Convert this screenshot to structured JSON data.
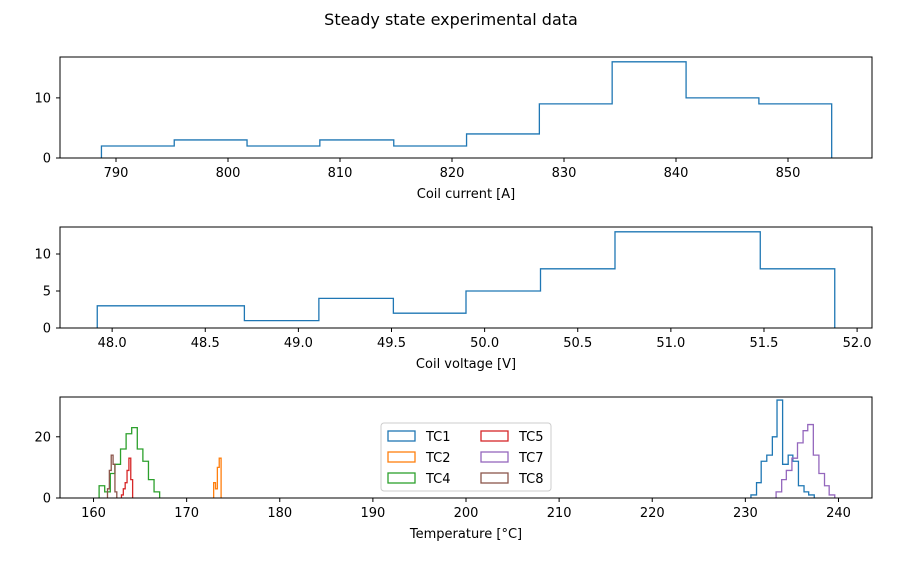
{
  "figure_title": "Steady state experimental data",
  "chart_data": [
    {
      "type": "histogram",
      "title": "",
      "xlabel": "Coil current [A]",
      "ylabel": "",
      "xlim": [
        785,
        857.5
      ],
      "ylim": [
        0,
        16.8
      ],
      "xticks": [
        790,
        800,
        810,
        820,
        830,
        840,
        850
      ],
      "yticks": [
        0,
        10
      ],
      "histtype": "step",
      "grid": false,
      "series": [
        {
          "color": "#1f77b4",
          "bin_edges": [
            788.7,
            795.2,
            801.7,
            808.2,
            814.8,
            821.3,
            827.8,
            834.3,
            840.9,
            847.4,
            853.9
          ],
          "counts": [
            2,
            3,
            2,
            3,
            2,
            4,
            9,
            16,
            10,
            9
          ]
        }
      ]
    },
    {
      "type": "histogram",
      "title": "",
      "xlabel": "Coil voltage [V]",
      "ylabel": "",
      "xlim": [
        47.72,
        52.08
      ],
      "ylim": [
        0,
        13.65
      ],
      "xticks": [
        48.0,
        48.5,
        49.0,
        49.5,
        50.0,
        50.5,
        51.0,
        51.5,
        52.0
      ],
      "yticks": [
        0,
        5,
        10
      ],
      "histtype": "step",
      "grid": false,
      "series": [
        {
          "color": "#1f77b4",
          "bin_edges": [
            47.92,
            48.71,
            49.11,
            49.51,
            49.9,
            50.3,
            50.7,
            51.48,
            51.88
          ],
          "counts": [
            3,
            1,
            4,
            2,
            5,
            8,
            13,
            8
          ]
        }
      ]
    },
    {
      "type": "histogram",
      "title": "",
      "xlabel": "Temperature [°C]",
      "ylabel": "",
      "xlim": [
        156.4,
        243.6
      ],
      "ylim": [
        0,
        33
      ],
      "xticks": [
        160,
        170,
        180,
        190,
        200,
        210,
        220,
        230,
        240
      ],
      "yticks": [
        0,
        20
      ],
      "histtype": "step",
      "grid": false,
      "legend": {
        "location": "center",
        "columns": 2
      },
      "series": [
        {
          "name": "TC1",
          "color": "#1f77b4",
          "bin_edges": [
            230.6,
            231.2,
            231.7,
            232.3,
            232.9,
            233.4,
            234.0,
            234.6,
            235.1,
            235.7,
            236.3,
            236.8,
            237.4
          ],
          "counts": [
            1,
            5,
            12,
            14,
            20,
            32,
            11,
            14,
            12,
            4,
            2,
            1
          ]
        },
        {
          "name": "TC2",
          "color": "#ff7f0e",
          "bin_edges": [
            172.9,
            173.1,
            173.3,
            173.5,
            173.7
          ],
          "counts": [
            5,
            3,
            10,
            13
          ]
        },
        {
          "name": "TC4",
          "color": "#2ca02c",
          "bin_edges": [
            160.6,
            161.2,
            161.8,
            162.3,
            162.9,
            163.5,
            164.1,
            164.7,
            165.3,
            165.9,
            166.5,
            167.1
          ],
          "counts": [
            4,
            2,
            8,
            11,
            16,
            21,
            23,
            16,
            12,
            6,
            2
          ]
        },
        {
          "name": "TC5",
          "color": "#d62728",
          "bin_edges": [
            163.0,
            163.2,
            163.4,
            163.6,
            163.8,
            164.0,
            164.2
          ],
          "counts": [
            1,
            3,
            5,
            9,
            13,
            6
          ]
        },
        {
          "name": "TC7",
          "color": "#9467bd",
          "bin_edges": [
            233.3,
            233.9,
            234.4,
            235.0,
            235.6,
            236.2,
            236.7,
            237.3,
            237.9,
            238.5,
            239.0,
            239.6
          ],
          "counts": [
            2,
            6,
            9,
            13,
            18,
            22,
            24,
            14,
            8,
            4,
            1
          ]
        },
        {
          "name": "TC8",
          "color": "#8c564b",
          "bin_edges": [
            161.5,
            161.7,
            161.9,
            162.1,
            162.3,
            162.5
          ],
          "counts": [
            3,
            9,
            14,
            11,
            2
          ]
        }
      ]
    }
  ]
}
